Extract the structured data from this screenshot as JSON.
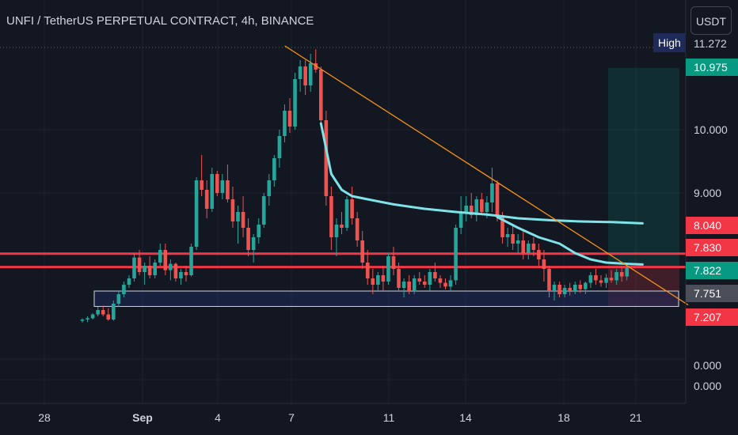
{
  "header": {
    "title": "UNFI / TetherUS PERPETUAL CONTRACT, 4h, BINANCE",
    "currency_button": "USDT",
    "high_label": "High"
  },
  "price_tags": {
    "high_value": "11.272",
    "target": "10.975",
    "upper_red": "8.040",
    "red_line": "7.830",
    "current": "7.822",
    "gray": "7.751",
    "stop": "7.207"
  },
  "y_axis_labels": [
    "10.000",
    "9.000",
    "0.000",
    "0.000"
  ],
  "x_axis_labels": [
    "28",
    "Sep",
    "4",
    "7",
    "11",
    "14",
    "18",
    "21"
  ],
  "colors": {
    "background": "#131722",
    "up": "#26a69a",
    "down": "#ef5350",
    "ma": "#7fe3e8",
    "trendline": "#f7931a",
    "resistance": "#f23645",
    "support_box": "#1e2a57",
    "target_green": "#089981",
    "stop_red": "#f23645"
  },
  "chart_data": {
    "type": "candlestick",
    "title": "UNFI / TetherUS PERPETUAL CONTRACT, 4h, BINANCE",
    "x_range": [
      "Aug 26",
      "Sep 22"
    ],
    "ylim": [
      6.8,
      11.5
    ],
    "candles": [
      [
        6.98,
        7.02,
        6.95,
        7.0
      ],
      [
        7.0,
        7.05,
        6.96,
        7.02
      ],
      [
        7.02,
        7.1,
        7.0,
        7.08
      ],
      [
        7.08,
        7.2,
        7.05,
        7.15
      ],
      [
        7.15,
        7.22,
        7.05,
        7.08
      ],
      [
        7.08,
        7.18,
        6.98,
        7.0
      ],
      [
        7.0,
        7.3,
        6.98,
        7.25
      ],
      [
        7.25,
        7.45,
        7.2,
        7.4
      ],
      [
        7.4,
        7.6,
        7.35,
        7.55
      ],
      [
        7.55,
        7.7,
        7.5,
        7.65
      ],
      [
        7.65,
        8.05,
        7.6,
        7.98
      ],
      [
        7.98,
        8.1,
        7.7,
        7.75
      ],
      [
        7.75,
        7.9,
        7.55,
        7.85
      ],
      [
        7.85,
        8.0,
        7.65,
        7.7
      ],
      [
        7.7,
        7.95,
        7.65,
        7.9
      ],
      [
        7.9,
        8.2,
        7.85,
        8.1
      ],
      [
        8.1,
        8.2,
        7.7,
        7.78
      ],
      [
        7.78,
        7.95,
        7.62,
        7.88
      ],
      [
        7.88,
        7.9,
        7.6,
        7.65
      ],
      [
        7.65,
        7.8,
        7.55,
        7.75
      ],
      [
        7.75,
        7.85,
        7.6,
        7.7
      ],
      [
        7.7,
        8.2,
        7.68,
        8.15
      ],
      [
        8.15,
        9.25,
        8.1,
        9.2
      ],
      [
        9.2,
        9.6,
        8.95,
        9.05
      ],
      [
        9.05,
        9.2,
        8.6,
        8.75
      ],
      [
        8.75,
        9.4,
        8.7,
        9.3
      ],
      [
        9.3,
        9.35,
        8.95,
        9.0
      ],
      [
        9.0,
        9.3,
        8.9,
        9.2
      ],
      [
        9.2,
        9.45,
        8.85,
        8.9
      ],
      [
        8.9,
        9.1,
        8.45,
        8.55
      ],
      [
        8.55,
        8.8,
        8.2,
        8.7
      ],
      [
        8.7,
        8.95,
        8.3,
        8.45
      ],
      [
        8.45,
        8.6,
        8.0,
        8.1
      ],
      [
        8.1,
        8.35,
        7.9,
        8.3
      ],
      [
        8.3,
        8.6,
        8.2,
        8.5
      ],
      [
        8.5,
        9.0,
        8.45,
        8.95
      ],
      [
        8.95,
        9.3,
        8.8,
        9.2
      ],
      [
        9.2,
        9.6,
        9.1,
        9.55
      ],
      [
        9.55,
        10.0,
        9.4,
        9.9
      ],
      [
        9.9,
        10.4,
        9.8,
        10.3
      ],
      [
        10.3,
        10.5,
        9.95,
        10.05
      ],
      [
        10.05,
        10.9,
        10.0,
        10.8
      ],
      [
        10.8,
        11.1,
        10.6,
        11.0
      ],
      [
        11.0,
        11.1,
        10.55,
        10.7
      ],
      [
        10.7,
        11.2,
        10.6,
        11.05
      ],
      [
        11.05,
        11.27,
        10.9,
        10.95
      ],
      [
        10.95,
        11.0,
        10.05,
        10.15
      ],
      [
        10.15,
        10.3,
        8.8,
        8.95
      ],
      [
        8.95,
        9.1,
        8.1,
        8.3
      ],
      [
        8.3,
        8.6,
        8.0,
        8.5
      ],
      [
        8.5,
        8.7,
        8.35,
        8.45
      ],
      [
        8.45,
        8.95,
        8.4,
        8.9
      ],
      [
        8.9,
        9.1,
        8.5,
        8.6
      ],
      [
        8.6,
        8.7,
        8.15,
        8.25
      ],
      [
        8.25,
        8.4,
        7.8,
        7.9
      ],
      [
        7.9,
        8.1,
        7.55,
        7.65
      ],
      [
        7.65,
        7.8,
        7.4,
        7.55
      ],
      [
        7.55,
        7.75,
        7.45,
        7.7
      ],
      [
        7.7,
        7.85,
        7.45,
        7.6
      ],
      [
        7.6,
        8.05,
        7.55,
        8.0
      ],
      [
        8.0,
        8.15,
        7.7,
        7.8
      ],
      [
        7.8,
        7.9,
        7.45,
        7.5
      ],
      [
        7.5,
        7.65,
        7.35,
        7.6
      ],
      [
        7.6,
        7.7,
        7.4,
        7.45
      ],
      [
        7.45,
        7.7,
        7.4,
        7.65
      ],
      [
        7.65,
        7.75,
        7.55,
        7.6
      ],
      [
        7.6,
        7.7,
        7.5,
        7.55
      ],
      [
        7.55,
        7.8,
        7.45,
        7.75
      ],
      [
        7.75,
        7.9,
        7.6,
        7.65
      ],
      [
        7.65,
        7.7,
        7.5,
        7.58
      ],
      [
        7.58,
        7.65,
        7.48,
        7.52
      ],
      [
        7.52,
        7.7,
        7.45,
        7.62
      ],
      [
        7.62,
        8.5,
        7.55,
        8.45
      ],
      [
        8.45,
        8.95,
        8.35,
        8.7
      ],
      [
        8.7,
        8.95,
        8.55,
        8.8
      ],
      [
        8.8,
        9.0,
        8.6,
        8.65
      ],
      [
        8.65,
        8.95,
        8.55,
        8.9
      ],
      [
        8.9,
        9.0,
        8.65,
        8.7
      ],
      [
        8.7,
        8.95,
        8.6,
        8.85
      ],
      [
        8.85,
        9.4,
        8.7,
        9.15
      ],
      [
        9.15,
        9.2,
        8.55,
        8.65
      ],
      [
        8.65,
        8.7,
        8.2,
        8.3
      ],
      [
        8.3,
        8.45,
        8.15,
        8.35
      ],
      [
        8.35,
        8.5,
        8.1,
        8.2
      ],
      [
        8.2,
        8.35,
        8.05,
        8.25
      ],
      [
        8.25,
        8.4,
        7.95,
        8.05
      ],
      [
        8.05,
        8.25,
        7.95,
        8.2
      ],
      [
        8.2,
        8.3,
        8.0,
        8.1
      ],
      [
        8.1,
        8.2,
        7.85,
        7.95
      ],
      [
        7.95,
        8.1,
        7.6,
        7.8
      ],
      [
        7.8,
        7.85,
        7.35,
        7.45
      ],
      [
        7.45,
        7.6,
        7.3,
        7.55
      ],
      [
        7.55,
        7.6,
        7.35,
        7.4
      ],
      [
        7.4,
        7.55,
        7.35,
        7.5
      ],
      [
        7.5,
        7.58,
        7.38,
        7.45
      ],
      [
        7.45,
        7.6,
        7.4,
        7.55
      ],
      [
        7.55,
        7.62,
        7.42,
        7.48
      ],
      [
        7.48,
        7.6,
        7.4,
        7.58
      ],
      [
        7.58,
        7.75,
        7.5,
        7.7
      ],
      [
        7.7,
        7.8,
        7.55,
        7.62
      ],
      [
        7.62,
        7.7,
        7.52,
        7.58
      ],
      [
        7.58,
        7.72,
        7.5,
        7.66
      ],
      [
        7.66,
        7.78,
        7.58,
        7.62
      ],
      [
        7.62,
        7.8,
        7.55,
        7.75
      ],
      [
        7.75,
        7.85,
        7.6,
        7.68
      ],
      [
        7.68,
        7.85,
        7.62,
        7.82
      ]
    ],
    "moving_average": [
      [
        46,
        10.1
      ],
      [
        48,
        9.3
      ],
      [
        50,
        9.05
      ],
      [
        52,
        8.95
      ],
      [
        55,
        8.9
      ],
      [
        60,
        8.82
      ],
      [
        66,
        8.75
      ],
      [
        72,
        8.7
      ],
      [
        78,
        8.66
      ],
      [
        84,
        8.6
      ],
      [
        90,
        8.57
      ],
      [
        96,
        8.55
      ],
      [
        102,
        8.54
      ],
      [
        108,
        8.52
      ]
    ],
    "moving_average_2": [
      [
        80,
        8.62
      ],
      [
        84,
        8.45
      ],
      [
        88,
        8.3
      ],
      [
        92,
        8.2
      ],
      [
        95,
        8.05
      ],
      [
        98,
        7.95
      ],
      [
        101,
        7.9
      ],
      [
        105,
        7.88
      ],
      [
        108,
        7.87
      ]
    ],
    "trendline": {
      "from": [
        43,
        11.3
      ],
      "to": [
        122,
        7.23
      ]
    },
    "resistance_levels": [
      8.04,
      7.83
    ],
    "support_zone": [
      7.207,
      7.45
    ],
    "position": {
      "target": 10.975,
      "entry": 7.822,
      "stop": 7.207
    }
  }
}
